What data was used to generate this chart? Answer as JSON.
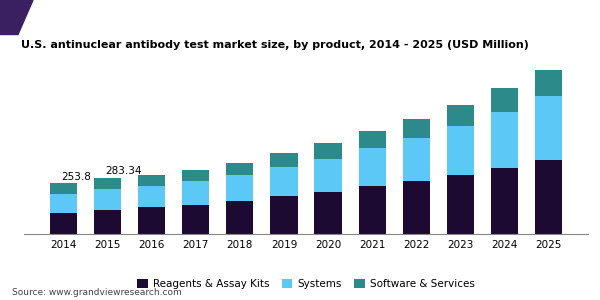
{
  "title": "U.S. antinuclear antibody test market size, by product, 2014 - 2025 (USD Million)",
  "years": [
    2014,
    2015,
    2016,
    2017,
    2018,
    2019,
    2020,
    2021,
    2022,
    2023,
    2024,
    2025
  ],
  "reagents": [
    105,
    120,
    135,
    148,
    165,
    190,
    210,
    240,
    268,
    295,
    330,
    370
  ],
  "systems": [
    95,
    105,
    108,
    118,
    130,
    148,
    168,
    190,
    215,
    248,
    285,
    325
  ],
  "software": [
    54,
    58,
    52,
    55,
    62,
    70,
    78,
    88,
    97,
    107,
    118,
    130
  ],
  "annotations": {
    "2014": "253.8",
    "2015": "283.34"
  },
  "color_reagents": "#1c0a33",
  "color_systems": "#5bc8f5",
  "color_software": "#2d8a8a",
  "color_header_bg": "#5c3a8a",
  "color_header_accent": "#3a2060",
  "source": "Source: www.grandviewresearch.com",
  "legend_labels": [
    "Reagents & Assay Kits",
    "Systems",
    "Software & Services"
  ],
  "background_color": "#ffffff"
}
